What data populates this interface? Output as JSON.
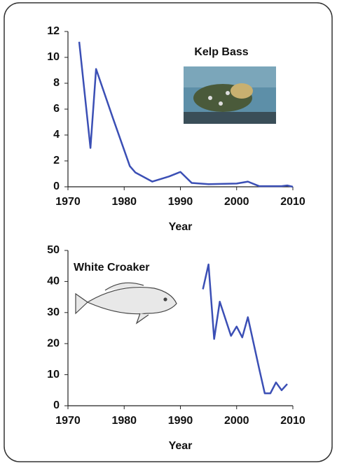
{
  "chart_data": [
    {
      "type": "line",
      "annotation": "Kelp Bass",
      "xlabel": "Year",
      "x": [
        1972,
        1974,
        1975,
        1978,
        1981,
        1982,
        1985,
        1988,
        1990,
        1992,
        1995,
        2000,
        2002,
        2004,
        2008,
        2009,
        2010
      ],
      "series": [
        {
          "color": "#3b4fb5",
          "values": [
            11.2,
            3.0,
            9.1,
            5.3,
            1.6,
            1.1,
            0.4,
            0.8,
            1.15,
            0.3,
            0.2,
            0.25,
            0.4,
            0.05,
            0.05,
            0.1,
            0
          ]
        }
      ],
      "xlim": [
        1970,
        2010
      ],
      "xticks": [
        1970,
        1980,
        1990,
        2000,
        2010
      ],
      "ylim": [
        0,
        12
      ],
      "yticks": [
        0,
        2,
        4,
        6,
        8,
        10,
        12
      ]
    },
    {
      "type": "line",
      "annotation": "White Croaker",
      "xlabel": "Year",
      "x": [
        1994,
        1995,
        1996,
        1997,
        1999,
        2000,
        2001,
        2002,
        2004,
        2005,
        2006,
        2007,
        2008,
        2009
      ],
      "series": [
        {
          "color": "#3b4fb5",
          "values": [
            37.5,
            45.5,
            21.5,
            33.5,
            22.5,
            25.5,
            22,
            28.5,
            12,
            4,
            4,
            7.5,
            5,
            7
          ]
        }
      ],
      "xlim": [
        1970,
        2010
      ],
      "xticks": [
        1970,
        1980,
        1990,
        2000,
        2010
      ],
      "ylim": [
        0,
        50
      ],
      "yticks": [
        0,
        10,
        20,
        30,
        40,
        50
      ]
    }
  ]
}
